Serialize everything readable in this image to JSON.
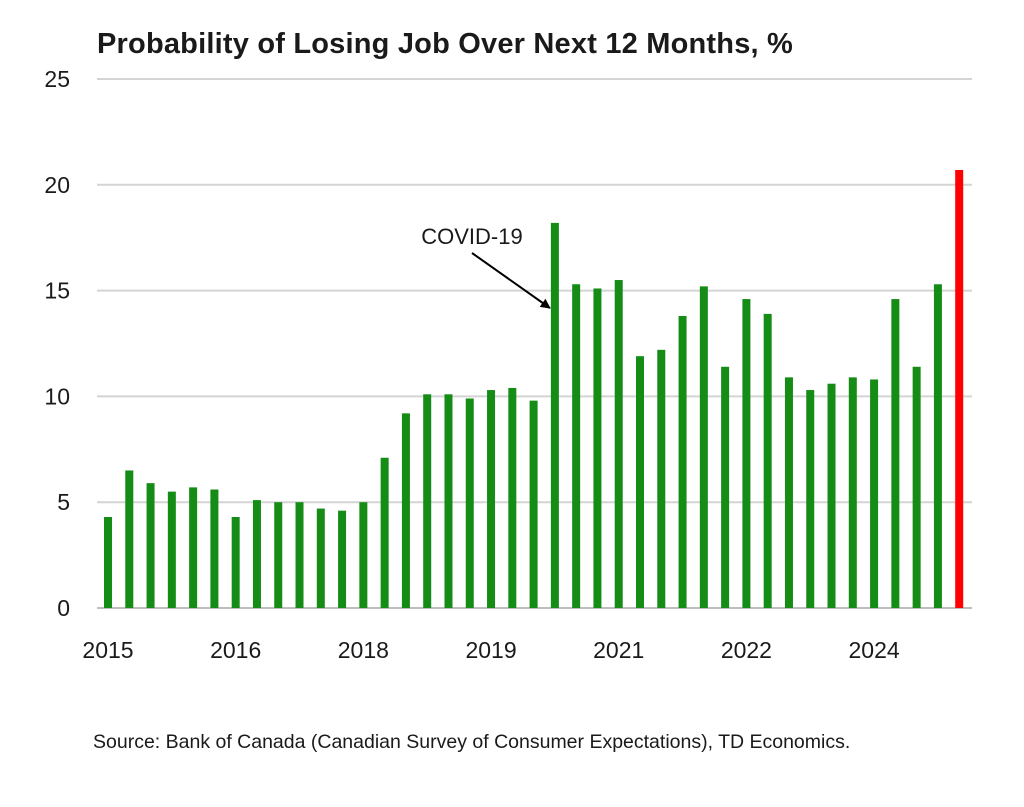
{
  "chart_data": {
    "type": "bar",
    "title": "Probability of Losing Job Over Next 12 Months, %",
    "xlabel": "",
    "ylabel": "",
    "ylim": [
      0,
      25
    ],
    "yticks": [
      "0",
      "5",
      "10",
      "15",
      "20",
      "25"
    ],
    "xtick_labels": [
      {
        "label": "2015",
        "index": 0
      },
      {
        "label": "2016",
        "index": 6
      },
      {
        "label": "2018",
        "index": 12
      },
      {
        "label": "2019",
        "index": 18
      },
      {
        "label": "2021",
        "index": 24
      },
      {
        "label": "2022",
        "index": 30
      },
      {
        "label": "2024",
        "index": 36
      }
    ],
    "values": [
      4.3,
      6.5,
      5.9,
      5.5,
      5.7,
      5.6,
      4.3,
      5.1,
      5.0,
      5.0,
      4.7,
      4.6,
      5.0,
      7.1,
      9.2,
      10.1,
      10.1,
      9.9,
      10.3,
      10.4,
      9.8,
      18.2,
      15.3,
      15.1,
      15.5,
      11.9,
      12.2,
      13.8,
      15.2,
      11.4,
      14.6,
      13.9,
      10.9,
      10.3,
      10.6,
      10.9,
      10.8,
      14.6,
      11.4,
      15.3,
      20.7
    ],
    "bar_color": "#158c16",
    "highlight_color": "#ff0000",
    "highlight_index": 40,
    "grid": true,
    "grid_color": "#d4d4d4",
    "annotation": {
      "text": "COVID-19",
      "index": 21
    }
  },
  "source": "Source: Bank of Canada (Canadian Survey of Consumer Expectations), TD Economics."
}
